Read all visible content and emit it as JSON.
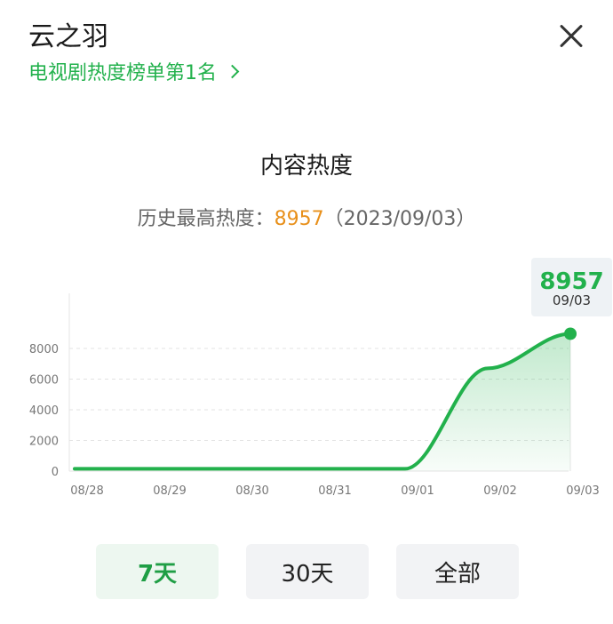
{
  "header": {
    "title": "云之羽",
    "rank_text": "电视剧热度榜单第1名"
  },
  "section_title": "内容热度",
  "peak": {
    "label": "历史最高热度：",
    "value": "8957",
    "date": "（2023/09/03）"
  },
  "tooltip": {
    "value": "8957",
    "date": "09/03"
  },
  "colors": {
    "accent": "#22b14c",
    "peak": "#e8901b"
  },
  "chart_data": {
    "type": "area",
    "x": [
      "08/28",
      "08/29",
      "08/30",
      "08/31",
      "09/01",
      "09/02",
      "09/03"
    ],
    "series": [
      {
        "values": [
          150,
          150,
          150,
          150,
          150,
          6700,
          8957
        ]
      }
    ],
    "yticks": [
      "0",
      "2000",
      "4000",
      "6000",
      "8000"
    ],
    "ylim": [
      0,
      10000
    ],
    "grid": true,
    "highlight_index": 6
  },
  "range_buttons": [
    {
      "label": "7天",
      "active": true
    },
    {
      "label": "30天",
      "active": false
    },
    {
      "label": "全部",
      "active": false
    }
  ]
}
